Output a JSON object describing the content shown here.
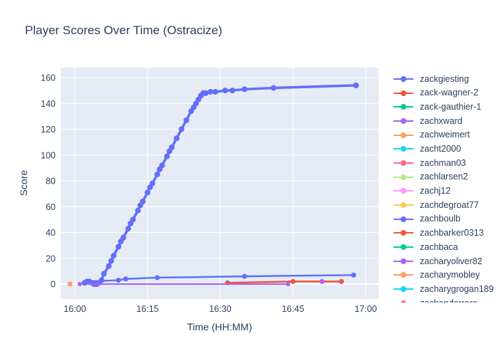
{
  "title": "Player Scores Over Time (Ostracize)",
  "chart_data": {
    "type": "line",
    "title": "Player Scores Over Time (Ostracize)",
    "xlabel": "Time (HH:MM)",
    "ylabel": "Score",
    "plot_bg": "#E5ECF6",
    "grid_color": "#FFFFFF",
    "text_color": "#2a3f5f",
    "legend_position": "right",
    "x_axis": {
      "tick_labels": [
        "16:00",
        "16:15",
        "16:30",
        "16:45",
        "17:00"
      ],
      "tick_minutes": [
        0,
        15,
        30,
        45,
        60
      ],
      "range_minutes": [
        -3,
        62.6
      ]
    },
    "y_axis": {
      "ticks": [
        0,
        20,
        40,
        60,
        80,
        100,
        120,
        140,
        160
      ],
      "range": [
        -11.6,
        167.7
      ]
    },
    "series": [
      {
        "name": "zackgiesting",
        "color": "#636EFA",
        "line_width": 3.5,
        "marker_size": 8,
        "points": [
          [
            2,
            1
          ],
          [
            2.5,
            2
          ],
          [
            3,
            2
          ],
          [
            3.5,
            1
          ],
          [
            4,
            0
          ],
          [
            4.5,
            0
          ],
          [
            5,
            1
          ],
          [
            5.5,
            3
          ],
          [
            6,
            8
          ],
          [
            7,
            14
          ],
          [
            7.5,
            18
          ],
          [
            8,
            22
          ],
          [
            9,
            29
          ],
          [
            9.5,
            33
          ],
          [
            10,
            36
          ],
          [
            11,
            43
          ],
          [
            11.5,
            47
          ],
          [
            12,
            50
          ],
          [
            13,
            57
          ],
          [
            13.5,
            61
          ],
          [
            14,
            64
          ],
          [
            15,
            71
          ],
          [
            15.5,
            75
          ],
          [
            16,
            78
          ],
          [
            17,
            85
          ],
          [
            17.5,
            89
          ],
          [
            18,
            92
          ],
          [
            19,
            99
          ],
          [
            19.5,
            103
          ],
          [
            20,
            106
          ],
          [
            21,
            113
          ],
          [
            22,
            120
          ],
          [
            23,
            127
          ],
          [
            24,
            134
          ],
          [
            24.5,
            137
          ],
          [
            25,
            140
          ],
          [
            25.5,
            143
          ],
          [
            26,
            146
          ],
          [
            26.5,
            148
          ],
          [
            27,
            148
          ],
          [
            28,
            149
          ],
          [
            29,
            149
          ],
          [
            31,
            150
          ],
          [
            32.5,
            150
          ],
          [
            35,
            151
          ],
          [
            41,
            152
          ],
          [
            58,
            154
          ]
        ]
      },
      {
        "name": "zack-wagner-2",
        "color": "#EF553B",
        "line_width": 2.5,
        "marker_size": 7,
        "points": [
          [
            31.5,
            1
          ],
          [
            45,
            2
          ],
          [
            55,
            2
          ]
        ]
      },
      {
        "name": "zack-gauthier-1",
        "color": "#00CC96",
        "line_width": 2,
        "marker_size": 7,
        "points": []
      },
      {
        "name": "zachxward",
        "color": "#AB63FA",
        "line_width": 2,
        "marker_size": 6,
        "points": [
          [
            1,
            0
          ],
          [
            44,
            0
          ]
        ]
      },
      {
        "name": "zachweimert",
        "color": "#FFA15A",
        "line_width": 2,
        "marker_size": 7,
        "points": [
          [
            -1,
            0
          ]
        ]
      },
      {
        "name": "zacht2000",
        "color": "#19D3F3",
        "line_width": 2,
        "marker_size": 7,
        "points": []
      },
      {
        "name": "zachman03",
        "color": "#FF6692",
        "line_width": 2,
        "marker_size": 7,
        "points": []
      },
      {
        "name": "zachlarsen2",
        "color": "#B6E880",
        "line_width": 2,
        "marker_size": 7,
        "points": []
      },
      {
        "name": "zachj12",
        "color": "#FF97FF",
        "line_width": 2,
        "marker_size": 7,
        "points": []
      },
      {
        "name": "zachdegroat77",
        "color": "#FECB52",
        "line_width": 2,
        "marker_size": 7,
        "points": []
      },
      {
        "name": "zachboulb",
        "color": "#636EFA",
        "line_width": 2.5,
        "marker_size": 7,
        "points": [
          [
            2,
            1
          ],
          [
            2.5,
            2
          ],
          [
            9,
            3
          ],
          [
            10.5,
            4
          ],
          [
            17,
            5
          ],
          [
            35,
            6
          ],
          [
            57.5,
            7
          ]
        ]
      },
      {
        "name": "zachbarker0313",
        "color": "#EF553B",
        "line_width": 2,
        "marker_size": 7,
        "points": []
      },
      {
        "name": "zachbaca",
        "color": "#00CC96",
        "line_width": 2,
        "marker_size": 7,
        "points": []
      },
      {
        "name": "zacharyoliver82",
        "color": "#AB63FA",
        "line_width": 2,
        "marker_size": 7,
        "points": [
          [
            51,
            2
          ]
        ]
      },
      {
        "name": "zacharymobley",
        "color": "#FFA15A",
        "line_width": 2,
        "marker_size": 7,
        "points": []
      },
      {
        "name": "zacharygrogan189",
        "color": "#19D3F3",
        "line_width": 2,
        "marker_size": 7,
        "points": []
      },
      {
        "name": "zacharyferraro",
        "color": "#FF6692",
        "line_width": 2,
        "marker_size": 7,
        "points": []
      }
    ]
  }
}
